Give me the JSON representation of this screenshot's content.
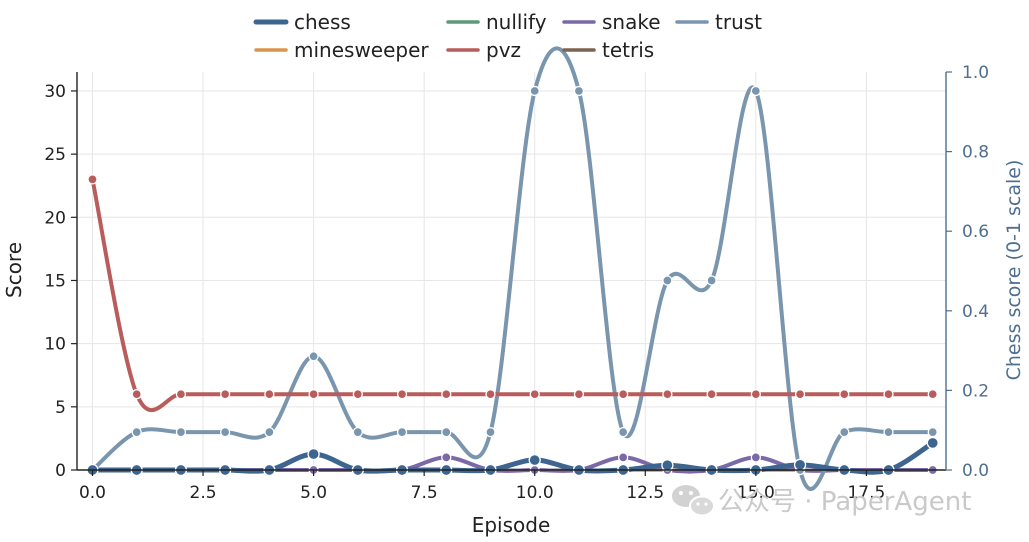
{
  "chart_data": {
    "type": "line",
    "xlabel": "Episode",
    "ylabel": "Score",
    "y2label": "Chess score (0-1 scale)",
    "xlim": [
      -0.35,
      19.3
    ],
    "ylim": [
      0,
      31.5
    ],
    "y2lim": [
      0,
      1.0
    ],
    "x_ticks": [
      0,
      2.5,
      5,
      7.5,
      10,
      12.5,
      15,
      17.5
    ],
    "x_tick_labels": [
      "0.0",
      "2.5",
      "5.0",
      "7.5",
      "10.0",
      "12.5",
      "15.0",
      "17.5"
    ],
    "y_ticks": [
      0,
      5,
      10,
      15,
      20,
      25,
      30
    ],
    "y_tick_labels": [
      "0",
      "5",
      "10",
      "15",
      "20",
      "25",
      "30"
    ],
    "y2_ticks": [
      0,
      0.2,
      0.4,
      0.6,
      0.8,
      1.0
    ],
    "y2_tick_labels": [
      "0.0",
      "0.2",
      "0.4",
      "0.6",
      "0.8",
      "1.0"
    ],
    "grid": true,
    "legend_position": "top-center",
    "x": [
      0,
      1,
      2,
      3,
      4,
      5,
      6,
      7,
      8,
      9,
      10,
      11,
      12,
      13,
      14,
      15,
      16,
      17,
      18,
      19
    ],
    "series": [
      {
        "name": "chess",
        "color": "#3d6590",
        "axis": "right",
        "width": 5,
        "values": [
          0,
          0,
          0,
          0,
          0,
          0.04,
          0,
          0,
          0,
          0,
          0.025,
          0,
          0,
          0.012,
          0,
          0,
          0.013,
          0,
          0,
          0.068
        ]
      },
      {
        "name": "minesweeper",
        "color": "#d9954a",
        "axis": "left",
        "width": 3,
        "values": [
          0,
          0,
          0,
          0,
          0,
          0,
          0,
          0,
          0,
          0,
          0,
          0,
          0,
          0,
          0,
          0,
          0,
          0,
          0,
          0
        ]
      },
      {
        "name": "nullify",
        "color": "#5a9a78",
        "axis": "left",
        "width": 3,
        "values": [
          0,
          0,
          0,
          0,
          0,
          0,
          0,
          0,
          0,
          0,
          0,
          0,
          0,
          0,
          0,
          0,
          0,
          0,
          0,
          0
        ]
      },
      {
        "name": "pvz",
        "color": "#b85c5c",
        "axis": "left",
        "width": 4,
        "values": [
          23,
          6,
          6,
          6,
          6,
          6,
          6,
          6,
          6,
          6,
          6,
          6,
          6,
          6,
          6,
          6,
          6,
          6,
          6,
          6
        ]
      },
      {
        "name": "snake",
        "color": "#7b68a6",
        "axis": "left",
        "width": 4,
        "values": [
          0,
          0,
          0,
          0,
          0,
          0,
          0,
          0,
          1,
          0,
          0,
          0,
          1,
          0,
          0,
          1,
          0,
          0,
          0,
          0
        ]
      },
      {
        "name": "tetris",
        "color": "#7d6450",
        "axis": "left",
        "width": 3,
        "values": [
          0,
          0,
          0,
          0,
          0,
          0,
          0,
          0,
          0,
          0,
          0,
          0,
          0,
          0,
          0,
          0,
          0,
          0,
          0,
          0
        ]
      },
      {
        "name": "trust",
        "color": "#7a96ae",
        "axis": "left",
        "width": 4,
        "values": [
          0,
          3,
          3,
          3,
          3,
          9,
          3,
          3,
          3,
          3,
          30,
          30,
          3,
          15,
          15,
          30,
          0,
          3,
          3,
          3
        ]
      }
    ],
    "legend_order": [
      "chess",
      "minesweeper",
      "nullify",
      "pvz",
      "snake",
      "tetris",
      "trust"
    ]
  },
  "watermark": {
    "icon": "wechat-icon",
    "text": "公众号 · PaperAgent"
  }
}
